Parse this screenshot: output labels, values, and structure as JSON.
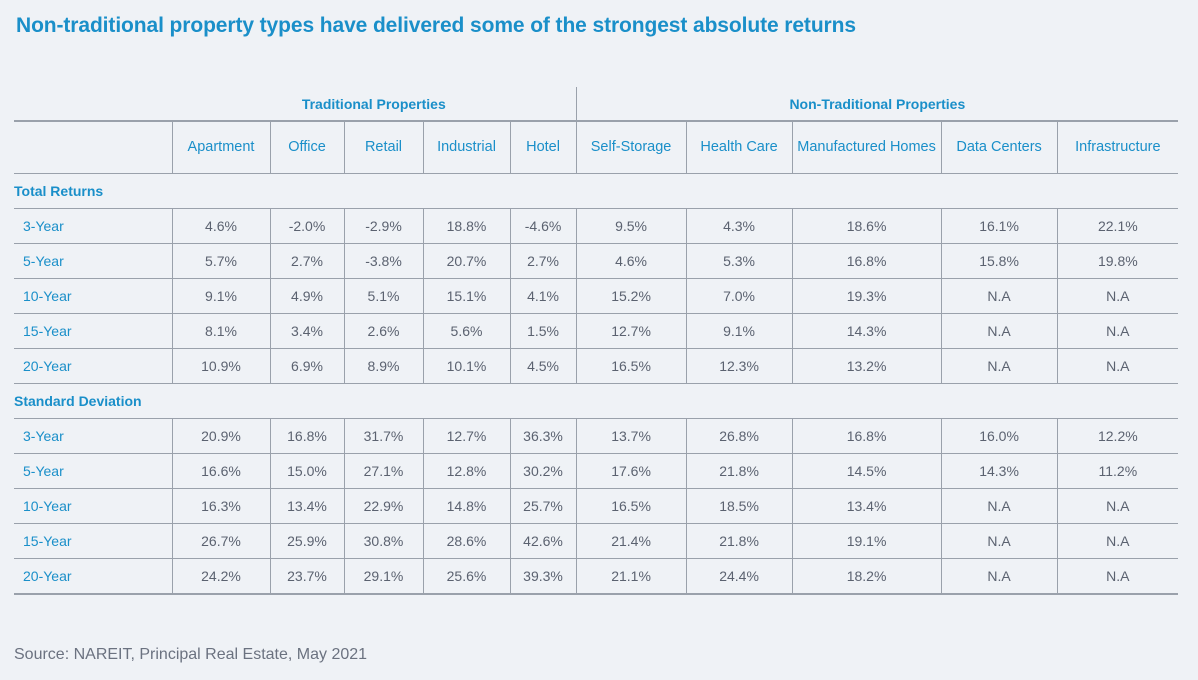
{
  "title": "Non-traditional property types have delivered some of the strongest absolute returns",
  "groups": {
    "traditional": "Traditional Properties",
    "non_traditional": "Non-Traditional Properties"
  },
  "columns": [
    "Apartment",
    "Office",
    "Retail",
    "Industrial",
    "Hotel",
    "Self-Storage",
    "Health Care",
    "Manufactured Homes",
    "Data Centers",
    "Infrastructure"
  ],
  "sections": [
    {
      "label": "Total Returns",
      "rows": [
        {
          "label": "3-Year",
          "values": [
            "4.6%",
            "-2.0%",
            "-2.9%",
            "18.8%",
            "-4.6%",
            "9.5%",
            "4.3%",
            "18.6%",
            "16.1%",
            "22.1%"
          ]
        },
        {
          "label": "5-Year",
          "values": [
            "5.7%",
            "2.7%",
            "-3.8%",
            "20.7%",
            "2.7%",
            "4.6%",
            "5.3%",
            "16.8%",
            "15.8%",
            "19.8%"
          ]
        },
        {
          "label": "10-Year",
          "values": [
            "9.1%",
            "4.9%",
            "5.1%",
            "15.1%",
            "4.1%",
            "15.2%",
            "7.0%",
            "19.3%",
            "N.A",
            "N.A"
          ]
        },
        {
          "label": "15-Year",
          "values": [
            "8.1%",
            "3.4%",
            "2.6%",
            "5.6%",
            "1.5%",
            "12.7%",
            "9.1%",
            "14.3%",
            "N.A",
            "N.A"
          ]
        },
        {
          "label": "20-Year",
          "values": [
            "10.9%",
            "6.9%",
            "8.9%",
            "10.1%",
            "4.5%",
            "16.5%",
            "12.3%",
            "13.2%",
            "N.A",
            "N.A"
          ]
        }
      ]
    },
    {
      "label": "Standard Deviation",
      "rows": [
        {
          "label": "3-Year",
          "values": [
            "20.9%",
            "16.8%",
            "31.7%",
            "12.7%",
            "36.3%",
            "13.7%",
            "26.8%",
            "16.8%",
            "16.0%",
            "12.2%"
          ]
        },
        {
          "label": "5-Year",
          "values": [
            "16.6%",
            "15.0%",
            "27.1%",
            "12.8%",
            "30.2%",
            "17.6%",
            "21.8%",
            "14.5%",
            "14.3%",
            "11.2%"
          ]
        },
        {
          "label": "10-Year",
          "values": [
            "16.3%",
            "13.4%",
            "22.9%",
            "14.8%",
            "25.7%",
            "16.5%",
            "18.5%",
            "13.4%",
            "N.A",
            "N.A"
          ]
        },
        {
          "label": "15-Year",
          "values": [
            "26.7%",
            "25.9%",
            "30.8%",
            "28.6%",
            "42.6%",
            "21.4%",
            "21.8%",
            "19.1%",
            "N.A",
            "N.A"
          ]
        },
        {
          "label": "20-Year",
          "values": [
            "24.2%",
            "23.7%",
            "29.1%",
            "25.6%",
            "39.3%",
            "21.1%",
            "24.4%",
            "18.2%",
            "N.A",
            "N.A"
          ]
        }
      ]
    }
  ],
  "source": "Source: NAREIT, Principal Real Estate, May 2021",
  "colors": {
    "accent": "#1a8fc9",
    "text": "#5b6270",
    "rule": "#9aa1ab",
    "background": "#eff2f6"
  }
}
